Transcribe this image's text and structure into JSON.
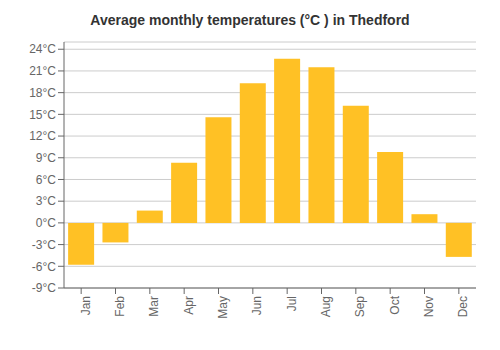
{
  "chart_data": {
    "type": "bar",
    "title": "Average monthly temperatures (°C ) in Thedford",
    "categories": [
      "Jan",
      "Feb",
      "Mar",
      "Apr",
      "May",
      "Jun",
      "Jul",
      "Aug",
      "Sep",
      "Oct",
      "Nov",
      "Dec"
    ],
    "values": [
      -5.8,
      -2.7,
      1.7,
      8.3,
      14.6,
      19.3,
      22.7,
      21.5,
      16.2,
      9.8,
      1.2,
      -4.7
    ],
    "color": "#FFC125",
    "ylim": [
      -9,
      25
    ],
    "yticks": [
      {
        "value": -9,
        "label": "-9°C"
      },
      {
        "value": -6,
        "label": "-6°C"
      },
      {
        "value": -3,
        "label": "-3°C"
      },
      {
        "value": 0,
        "label": "0°C"
      },
      {
        "value": 3,
        "label": "3°C"
      },
      {
        "value": 6,
        "label": "6°C"
      },
      {
        "value": 9,
        "label": "9°C"
      },
      {
        "value": 12,
        "label": "12°C"
      },
      {
        "value": 15,
        "label": "15°C"
      },
      {
        "value": 18,
        "label": "18°C"
      },
      {
        "value": 21,
        "label": "21°C"
      },
      {
        "value": 24,
        "label": "24°C"
      }
    ],
    "grid": true
  }
}
